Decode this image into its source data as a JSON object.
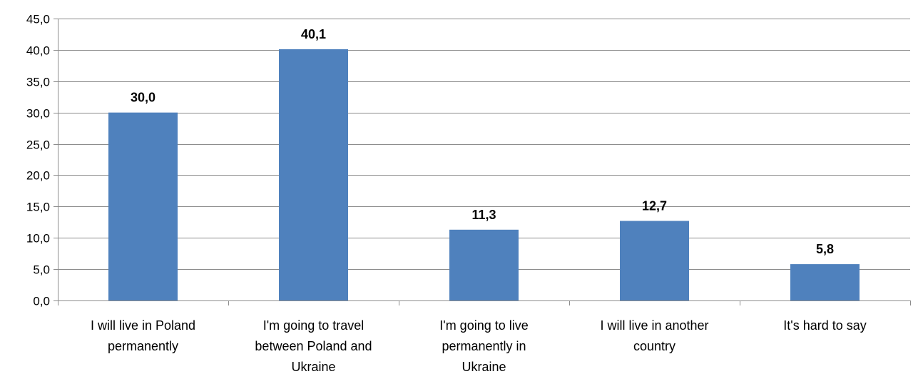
{
  "chart_data": {
    "type": "bar",
    "categories": [
      [
        "I will live in Poland",
        "permanently"
      ],
      [
        "I'm going to travel",
        "between Poland and",
        "Ukraine"
      ],
      [
        "I'm going to live",
        "permanently in",
        "Ukraine"
      ],
      [
        "I will live in another",
        "country"
      ],
      [
        "It's hard to say"
      ]
    ],
    "values": [
      30.0,
      40.1,
      11.3,
      12.7,
      5.8
    ],
    "data_labels": [
      "30,0",
      "40,1",
      "11,3",
      "12,7",
      "5,8"
    ],
    "y_ticks": [
      "0,0",
      "5,0",
      "10,0",
      "15,0",
      "20,0",
      "25,0",
      "30,0",
      "35,0",
      "40,0",
      "45,0"
    ],
    "ylim": [
      0,
      45
    ],
    "y_step": 5,
    "grid": true,
    "legend": false,
    "bar_color": "#4f81bd"
  }
}
